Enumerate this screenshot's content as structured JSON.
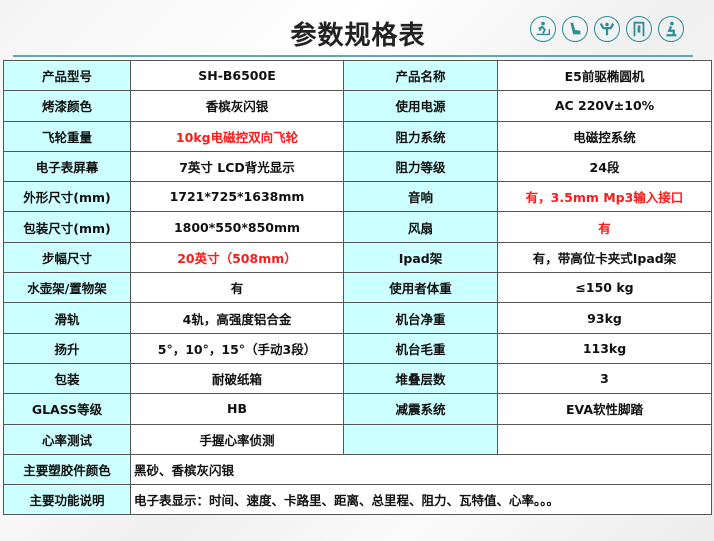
{
  "title": "参数规格表",
  "icons": [
    "treadmill-icon",
    "massage-chair-icon",
    "dumbbell-icon",
    "pullup-station-icon",
    "exercise-bike-icon"
  ],
  "colors": {
    "label_bg": "#ccffff",
    "highlight": "#ff1a1a",
    "accent": "#2b8e98"
  },
  "rows": [
    {
      "l1": "产品型号",
      "v1": "SH-B6500E",
      "l2": "产品名称",
      "v2": "E5前驱椭圆机"
    },
    {
      "l1": "烤漆颜色",
      "v1": "香槟灰闪银",
      "l2": "使用电源",
      "v2": "AC 220V±10%"
    },
    {
      "l1": "飞轮重量",
      "v1": "10kg电磁控双向飞轮",
      "l2": "阻力系统",
      "v2": "电磁控系统"
    },
    {
      "l1": "电子表屏幕",
      "v1": "7英寸 LCD背光显示",
      "l2": "阻力等级",
      "v2": "24段"
    },
    {
      "l1": "外形尺寸(mm)",
      "v1": "1721*725*1638mm",
      "l2": "音响",
      "v2": "有，3.5mm Mp3输入接口"
    },
    {
      "l1": "包装尺寸(mm)",
      "v1": "1800*550*850mm",
      "l2": "风扇",
      "v2": "有"
    },
    {
      "l1": "步幅尺寸",
      "v1": "20英寸（508mm）",
      "l2": "Ipad架",
      "v2": "有，带高位卡夹式Ipad架"
    },
    {
      "l1": "水壶架/置物架",
      "v1": "有",
      "l2": "使用者体重",
      "v2": "≤150 kg"
    },
    {
      "l1": "滑轨",
      "v1": "4轨，高强度铝合金",
      "l2": "机台净重",
      "v2": "93kg"
    },
    {
      "l1": "扬升",
      "v1": "5°，10°，15°（手动3段）",
      "l2": "机台毛重",
      "v2": "113kg"
    },
    {
      "l1": "包装",
      "v1": "耐破纸箱",
      "l2": "堆叠层数",
      "v2": "3"
    },
    {
      "l1": "GLASS等级",
      "v1": "HB",
      "l2": "减震系统",
      "v2": "EVA软性脚踏"
    },
    {
      "l1": "心率测试",
      "v1": "手握心率侦测",
      "l2": "",
      "v2": ""
    }
  ],
  "wide_rows": [
    {
      "label": "主要塑胶件颜色",
      "value": "黑砂、香槟灰闪银"
    },
    {
      "label": "主要功能说明",
      "value": "电子表显示：时间、速度、卡路里、距离、总里程、阻力、瓦特值、心率。。。"
    }
  ]
}
